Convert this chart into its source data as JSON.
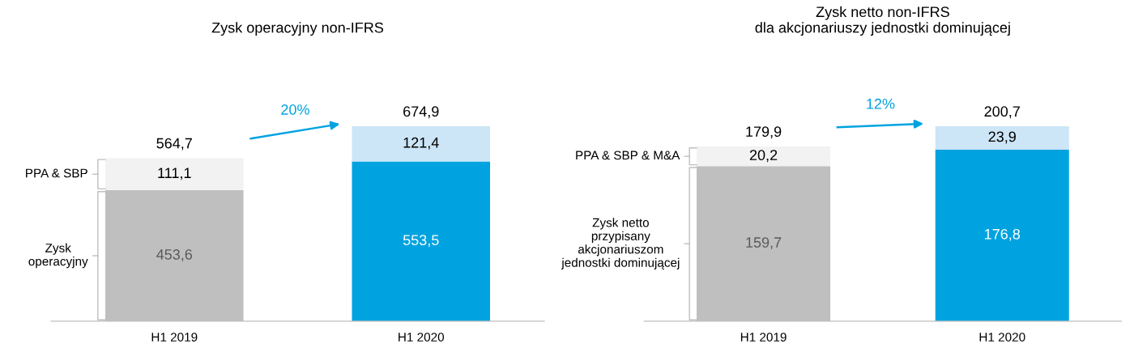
{
  "chart_data": [
    {
      "type": "bar",
      "title": "Zysk operacyjny non-IFRS",
      "categories": [
        "H1 2019",
        "H1 2020"
      ],
      "stacked": true,
      "data_labels": true,
      "series": [
        {
          "values": [
            453.6,
            553.5
          ],
          "colors": [
            "#bfbfbf",
            "#00a3e0"
          ],
          "value_labels": [
            "453,6",
            "553,5"
          ]
        },
        {
          "values": [
            111.1,
            121.4
          ],
          "colors": [
            "#f2f2f2",
            "#cce5f7"
          ],
          "value_labels": [
            "111,1",
            "121,4"
          ]
        }
      ],
      "totals": [
        "564,7",
        "674,9"
      ],
      "annotations": [
        "Zysk\noperacyjny",
        "PPA & SBP",
        "20%"
      ]
    },
    {
      "type": "bar",
      "title": "Zysk netto non-IFRS\ndla akcjonariuszy jednostki dominującej",
      "categories": [
        "H1 2019",
        "H1 2020"
      ],
      "stacked": true,
      "data_labels": true,
      "series": [
        {
          "values": [
            159.7,
            176.8
          ],
          "colors": [
            "#bfbfbf",
            "#00a3e0"
          ],
          "value_labels": [
            "159,7",
            "176,8"
          ]
        },
        {
          "values": [
            20.2,
            23.9
          ],
          "colors": [
            "#f2f2f2",
            "#cce5f7"
          ],
          "value_labels": [
            "20,2",
            "23,9"
          ]
        }
      ],
      "totals": [
        "179,9",
        "200,7"
      ],
      "annotations": [
        "Zysk netto\nprzypisany\nakcjonariuszom\njednostki dominującej",
        "PPA & SBP & M&A",
        "12%"
      ]
    }
  ]
}
